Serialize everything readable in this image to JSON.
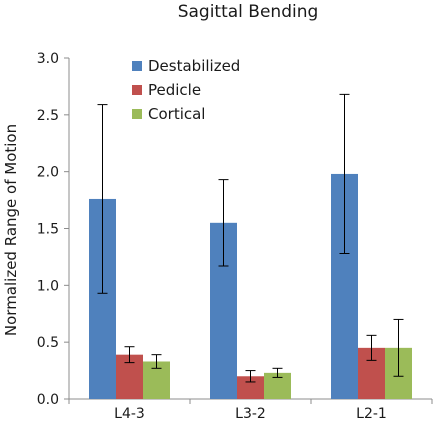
{
  "chart_data": {
    "type": "bar",
    "title": "Sagittal Bending",
    "xlabel": "",
    "ylabel": "Normalized Range of Motion",
    "categories": [
      "L4-3",
      "L3-2",
      "L2-1"
    ],
    "ylim": [
      0,
      3.0
    ],
    "yticks": [
      "0.0",
      "0.5",
      "1.0",
      "1.5",
      "2.0",
      "2.5",
      "3.0"
    ],
    "grid": false,
    "legend_position": "top-left",
    "series": [
      {
        "name": "Destabilized",
        "color": "#4f81bd",
        "values": [
          1.76,
          1.55,
          1.98
        ],
        "error": [
          0.83,
          0.38,
          0.7
        ]
      },
      {
        "name": "Pedicle",
        "color": "#c0504d",
        "values": [
          0.39,
          0.2,
          0.45
        ],
        "error": [
          0.07,
          0.05,
          0.11
        ]
      },
      {
        "name": "Cortical",
        "color": "#9bbb59",
        "values": [
          0.33,
          0.23,
          0.45
        ],
        "error": [
          0.06,
          0.04,
          0.25
        ]
      }
    ]
  }
}
